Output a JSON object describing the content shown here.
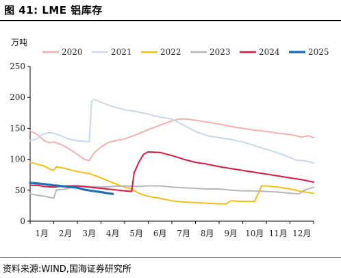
{
  "header": {
    "title": "图 41:  LME 铝库存"
  },
  "footer": {
    "source": "资料来源:WIND,国海证券研究所"
  },
  "colors": {
    "2020": "#f4b0a7",
    "2021": "#c5d8ec",
    "2022": "#f5bd0e",
    "2023": "#b6b6b6",
    "2024": "#d9163d",
    "2025": "#1f6fb5"
  },
  "chart_data": {
    "type": "line",
    "unit_label": "万吨",
    "xlabel": "",
    "ylabel": "",
    "x_domain": [
      1,
      13
    ],
    "x_ticks": [
      {
        "v": 1,
        "label": "1月"
      },
      {
        "v": 2,
        "label": "2月"
      },
      {
        "v": 3,
        "label": "3月"
      },
      {
        "v": 4,
        "label": "4月"
      },
      {
        "v": 5,
        "label": "5月"
      },
      {
        "v": 6,
        "label": "6月"
      },
      {
        "v": 7,
        "label": "7月"
      },
      {
        "v": 8,
        "label": "8月"
      },
      {
        "v": 9,
        "label": "9月"
      },
      {
        "v": 10,
        "label": "10月"
      },
      {
        "v": 11,
        "label": "11月"
      },
      {
        "v": 12,
        "label": "12月"
      }
    ],
    "ylim": [
      0,
      250
    ],
    "y_ticks": [
      0,
      50,
      100,
      150,
      200,
      250
    ],
    "grid": false,
    "legend_position": "top",
    "series": [
      {
        "name": "2020",
        "points": [
          [
            1,
            146
          ],
          [
            1.3,
            140
          ],
          [
            1.6,
            130
          ],
          [
            1.8,
            127
          ],
          [
            2,
            128
          ],
          [
            2.3,
            124
          ],
          [
            2.6,
            118
          ],
          [
            3,
            108
          ],
          [
            3.3,
            100
          ],
          [
            3.5,
            98
          ],
          [
            3.7,
            110
          ],
          [
            4,
            120
          ],
          [
            4.3,
            127
          ],
          [
            4.6,
            130
          ],
          [
            5,
            133
          ],
          [
            5.5,
            140
          ],
          [
            6,
            148
          ],
          [
            6.5,
            155
          ],
          [
            7,
            162
          ],
          [
            7.3,
            165
          ],
          [
            7.6,
            165
          ],
          [
            8,
            163
          ],
          [
            8.5,
            160
          ],
          [
            9,
            157
          ],
          [
            9.5,
            153
          ],
          [
            10,
            150
          ],
          [
            10.5,
            147
          ],
          [
            11,
            145
          ],
          [
            11.5,
            142
          ],
          [
            12,
            140
          ],
          [
            12.5,
            136
          ],
          [
            12.8,
            138
          ],
          [
            13,
            135
          ]
        ]
      },
      {
        "name": "2021",
        "points": [
          [
            1,
            130
          ],
          [
            1.3,
            133
          ],
          [
            1.5,
            140
          ],
          [
            1.8,
            143
          ],
          [
            2,
            142
          ],
          [
            2.3,
            138
          ],
          [
            2.6,
            133
          ],
          [
            3,
            130
          ],
          [
            3.5,
            128
          ],
          [
            3.6,
            193
          ],
          [
            3.7,
            197
          ],
          [
            4,
            192
          ],
          [
            4.5,
            185
          ],
          [
            5,
            180
          ],
          [
            5.5,
            177
          ],
          [
            6,
            173
          ],
          [
            6.5,
            168
          ],
          [
            7,
            165
          ],
          [
            7.5,
            155
          ],
          [
            8,
            145
          ],
          [
            8.5,
            138
          ],
          [
            9,
            135
          ],
          [
            9.5,
            132
          ],
          [
            10,
            128
          ],
          [
            10.5,
            122
          ],
          [
            11,
            116
          ],
          [
            11.5,
            110
          ],
          [
            12,
            103
          ],
          [
            12.3,
            98
          ],
          [
            12.5,
            98
          ],
          [
            12.8,
            96
          ],
          [
            13,
            94
          ]
        ]
      },
      {
        "name": "2022",
        "points": [
          [
            1,
            95
          ],
          [
            1.3,
            92
          ],
          [
            1.6,
            89
          ],
          [
            1.9,
            83
          ],
          [
            2,
            82
          ],
          [
            2.1,
            88
          ],
          [
            2.5,
            85
          ],
          [
            3,
            80
          ],
          [
            3.5,
            77
          ],
          [
            4,
            70
          ],
          [
            4.5,
            62
          ],
          [
            5,
            55
          ],
          [
            5.3,
            52
          ],
          [
            5.6,
            45
          ],
          [
            6,
            40
          ],
          [
            6.5,
            37
          ],
          [
            7,
            33
          ],
          [
            7.5,
            31
          ],
          [
            8,
            30
          ],
          [
            8.5,
            29
          ],
          [
            9,
            28
          ],
          [
            9.3,
            28
          ],
          [
            9.5,
            33
          ],
          [
            10,
            32
          ],
          [
            10.5,
            32
          ],
          [
            10.6,
            40
          ],
          [
            10.8,
            57
          ],
          [
            11,
            57
          ],
          [
            11.5,
            55
          ],
          [
            12,
            52
          ],
          [
            12.5,
            48
          ],
          [
            13,
            45
          ]
        ]
      },
      {
        "name": "2023",
        "points": [
          [
            1,
            44
          ],
          [
            1.3,
            42
          ],
          [
            1.6,
            40
          ],
          [
            1.9,
            38
          ],
          [
            2,
            37
          ],
          [
            2.1,
            50
          ],
          [
            2.5,
            52
          ],
          [
            3,
            57
          ],
          [
            3.5,
            56
          ],
          [
            4,
            55
          ],
          [
            4.5,
            56
          ],
          [
            5,
            57
          ],
          [
            5.5,
            56
          ],
          [
            6,
            57
          ],
          [
            6.5,
            57
          ],
          [
            7,
            55
          ],
          [
            7.5,
            54
          ],
          [
            8,
            53
          ],
          [
            8.5,
            52
          ],
          [
            9,
            52
          ],
          [
            9.5,
            50
          ],
          [
            10,
            49
          ],
          [
            10.5,
            49
          ],
          [
            11,
            48
          ],
          [
            11.5,
            47
          ],
          [
            12,
            45
          ],
          [
            12.4,
            44
          ],
          [
            12.6,
            50
          ],
          [
            13,
            55
          ]
        ]
      },
      {
        "name": "2024",
        "points": [
          [
            1,
            58
          ],
          [
            1.3,
            58
          ],
          [
            1.6,
            56
          ],
          [
            2,
            55
          ],
          [
            2.5,
            57
          ],
          [
            3,
            57
          ],
          [
            3.5,
            55
          ],
          [
            4,
            53
          ],
          [
            4.5,
            51
          ],
          [
            5,
            49
          ],
          [
            5.3,
            48
          ],
          [
            5.4,
            78
          ],
          [
            5.6,
            95
          ],
          [
            5.8,
            108
          ],
          [
            6,
            112
          ],
          [
            6.5,
            111
          ],
          [
            7,
            106
          ],
          [
            7.5,
            100
          ],
          [
            8,
            95
          ],
          [
            8.5,
            92
          ],
          [
            9,
            88
          ],
          [
            9.5,
            85
          ],
          [
            10,
            82
          ],
          [
            10.5,
            79
          ],
          [
            11,
            76
          ],
          [
            11.5,
            73
          ],
          [
            12,
            70
          ],
          [
            12.5,
            67
          ],
          [
            13,
            63
          ]
        ]
      },
      {
        "name": "2025",
        "points": [
          [
            1,
            62
          ],
          [
            1.3,
            61
          ],
          [
            1.6,
            60
          ],
          [
            2,
            58
          ],
          [
            2.5,
            56
          ],
          [
            3,
            54
          ],
          [
            3.3,
            51
          ],
          [
            3.6,
            49
          ],
          [
            4,
            47
          ],
          [
            4.3,
            45
          ],
          [
            4.5,
            44
          ]
        ]
      }
    ]
  }
}
